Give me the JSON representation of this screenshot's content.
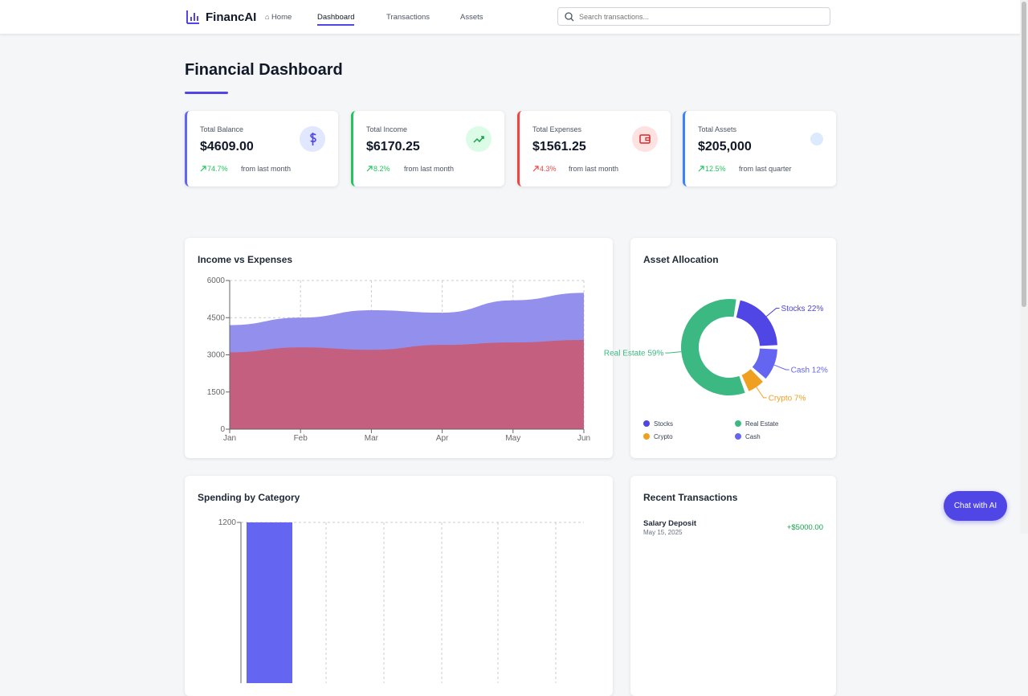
{
  "nav": {
    "logo": "FinancAI",
    "links": [
      "Home",
      "Dashboard",
      "Transactions",
      "Assets"
    ],
    "search_placeholder": "Search transactions..."
  },
  "header": {
    "title": "Financial Dashboard"
  },
  "cards": [
    {
      "label": "Total Balance",
      "value": "$4609.00",
      "change": "74.7%",
      "note": "from last month"
    },
    {
      "label": "Total Income",
      "value": "$6170.25",
      "change": "8.2%",
      "note": "from last month"
    },
    {
      "label": "Total Expenses",
      "value": "$1561.25",
      "change": "4.3%",
      "note": "from last month"
    },
    {
      "label": "Total Assets",
      "value": "$205,000",
      "change": "12.5%",
      "note": "from last quarter"
    }
  ],
  "chart_data": [
    {
      "type": "area",
      "title": "Income vs Expenses",
      "categories": [
        "Jan",
        "Feb",
        "Mar",
        "Apr",
        "May",
        "Jun"
      ],
      "series": [
        {
          "color": "#938fec",
          "values": [
            4200,
            4500,
            4800,
            4700,
            5200,
            5500
          ]
        },
        {
          "color": "#c55f7f",
          "values": [
            3100,
            3300,
            3200,
            3400,
            3500,
            3600
          ]
        }
      ],
      "ylim": [
        0,
        6000
      ],
      "yticks": [
        0,
        1500,
        3000,
        4500,
        6000
      ],
      "grid": true
    },
    {
      "type": "pie",
      "title": "Asset Allocation",
      "categories": [
        "Stocks",
        "Real Estate",
        "Crypto",
        "Cash"
      ],
      "values": [
        22,
        59,
        7,
        12
      ],
      "value_labels": [
        "Stocks 22%",
        "Real Estate 59%",
        "Crypto 7%",
        "Cash 12%"
      ],
      "colors": [
        "#4f46e5",
        "#3cb982",
        "#f0a020",
        "#6466f1"
      ],
      "legend": true
    },
    {
      "type": "bar",
      "title": "Spending by Category",
      "categories": [
        null
      ],
      "values": [
        1200
      ],
      "color": "#6466f1",
      "ylim": [
        0,
        1200
      ],
      "yticks": [
        1200
      ],
      "grid": true
    }
  ],
  "transactions": {
    "title": "Recent Transactions",
    "items": [
      {
        "name": "Salary Deposit",
        "date": "May 15, 2025",
        "amount": "+$5000.00"
      }
    ]
  },
  "chat_button": "Chat with AI"
}
